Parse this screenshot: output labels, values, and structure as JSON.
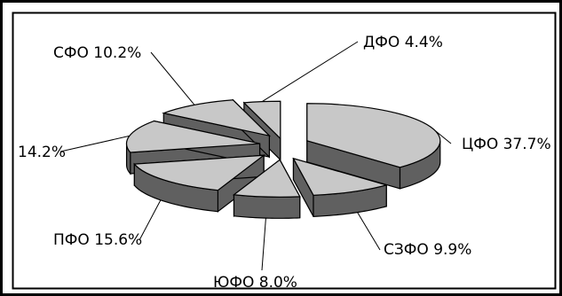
{
  "chart_data": {
    "type": "pie",
    "style": "3d-exploded",
    "title": "",
    "colors": {
      "top": "#c8c8c8",
      "side": "#606060",
      "edge": "#000000",
      "background": "#ffffff"
    },
    "slices": [
      {
        "name": "ЦФО",
        "value": 37.7,
        "label": "ЦФО 37.7%"
      },
      {
        "name": "СЗФО",
        "value": 9.9,
        "label": "СЗФО 9.9%"
      },
      {
        "name": "ЮФО",
        "value": 8.0,
        "label": "ЮФО 8.0%"
      },
      {
        "name": "ПФО",
        "value": 15.6,
        "label": "ПФО 15.6%"
      },
      {
        "name": "",
        "value": 14.2,
        "label": "14.2%"
      },
      {
        "name": "СФО",
        "value": 10.2,
        "label": "СФО 10.2%"
      },
      {
        "name": "ДФО",
        "value": 4.4,
        "label": "ДФО 4.4%"
      }
    ]
  }
}
